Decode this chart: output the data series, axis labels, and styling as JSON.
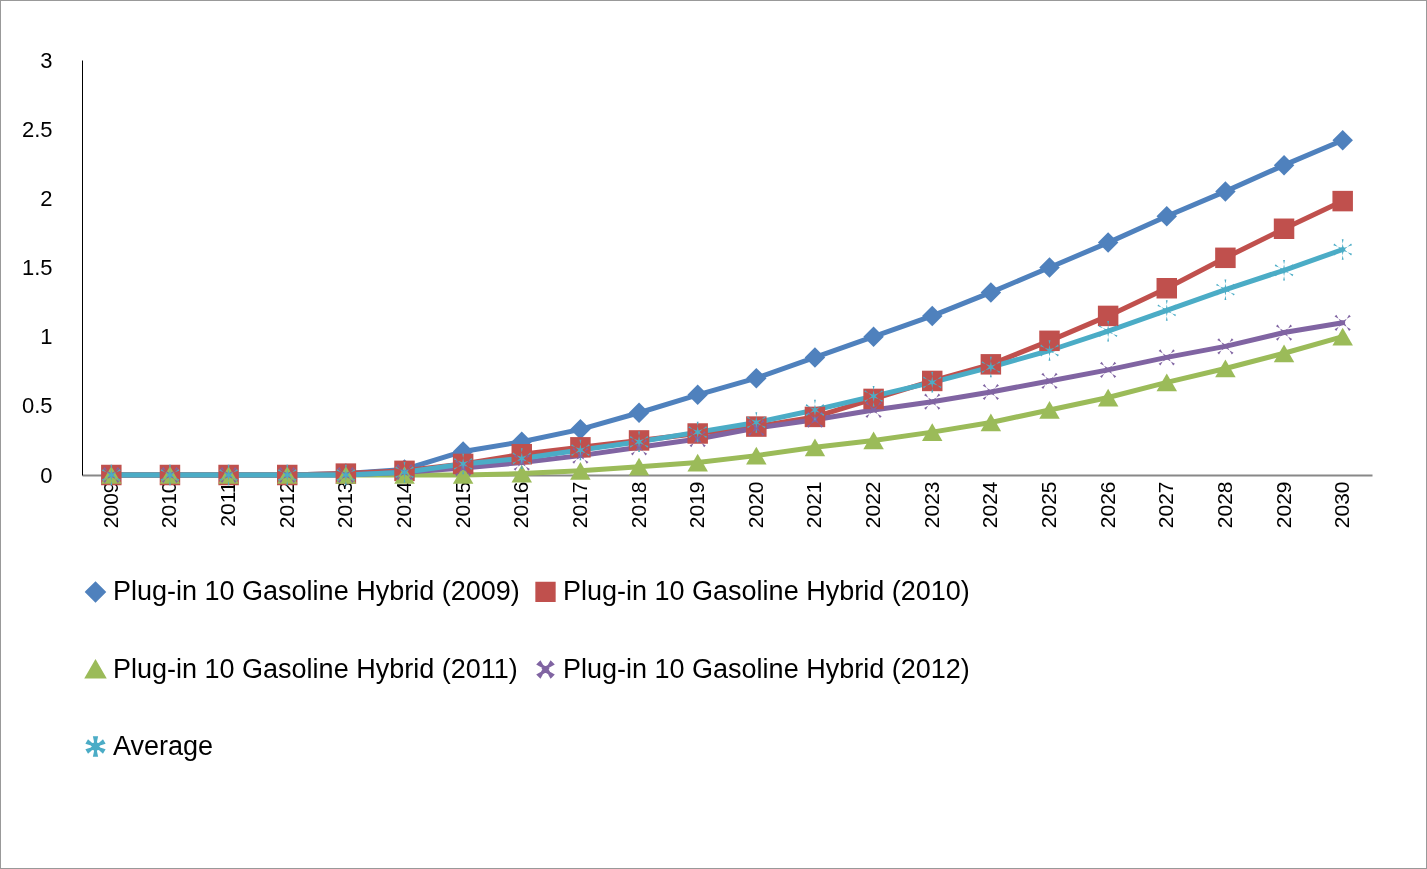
{
  "chart_data": {
    "type": "line",
    "categories": [
      "2009",
      "2010",
      "2011",
      "2012",
      "2013",
      "2014",
      "2015",
      "2016",
      "2017",
      "2018",
      "2019",
      "2020",
      "2021",
      "2022",
      "2023",
      "2024",
      "2025",
      "2026",
      "2027",
      "2028",
      "2029",
      "2030"
    ],
    "ylim": [
      0,
      3
    ],
    "yticks": [
      0,
      0.5,
      1,
      1.5,
      2,
      2.5,
      3
    ],
    "grid": false,
    "legend": "bottom",
    "series": [
      {
        "name": "Plug-in 10 Gasoline Hybrid (2009)",
        "color": "#4f81bd",
        "marker": "diamond",
        "values": [
          0,
          0,
          0,
          0,
          0.01,
          0.04,
          0.17,
          0.24,
          0.33,
          0.45,
          0.58,
          0.7,
          0.85,
          1.0,
          1.15,
          1.32,
          1.5,
          1.68,
          1.87,
          2.05,
          2.24,
          2.42
        ]
      },
      {
        "name": "Plug-in 10 Gasoline Hybrid (2010)",
        "color": "#c0504d",
        "marker": "square",
        "values": [
          0,
          0,
          0,
          0,
          0.01,
          0.03,
          0.08,
          0.15,
          0.2,
          0.25,
          0.3,
          0.35,
          0.42,
          0.55,
          0.68,
          0.8,
          0.97,
          1.15,
          1.35,
          1.57,
          1.78,
          1.98
        ]
      },
      {
        "name": "Plug-in 10 Gasoline Hybrid (2011)",
        "color": "#9bbb59",
        "marker": "triangle",
        "values": [
          0,
          0,
          0,
          0,
          0,
          0,
          0,
          0.01,
          0.03,
          0.06,
          0.09,
          0.14,
          0.2,
          0.25,
          0.31,
          0.38,
          0.47,
          0.56,
          0.67,
          0.77,
          0.88,
          1.0
        ]
      },
      {
        "name": "Plug-in 10 Gasoline Hybrid (2012)",
        "color": "#8064a2",
        "marker": "cross",
        "values": [
          0,
          0,
          0,
          0,
          0,
          0.02,
          0.05,
          0.09,
          0.14,
          0.2,
          0.26,
          0.34,
          0.4,
          0.47,
          0.53,
          0.6,
          0.68,
          0.76,
          0.85,
          0.93,
          1.03,
          1.1
        ]
      },
      {
        "name": "Average",
        "color": "#4bacc6",
        "marker": "star",
        "values": [
          0,
          0,
          0,
          0,
          0,
          0.02,
          0.08,
          0.12,
          0.18,
          0.24,
          0.31,
          0.38,
          0.47,
          0.57,
          0.67,
          0.78,
          0.9,
          1.04,
          1.19,
          1.34,
          1.48,
          1.63
        ]
      }
    ]
  }
}
